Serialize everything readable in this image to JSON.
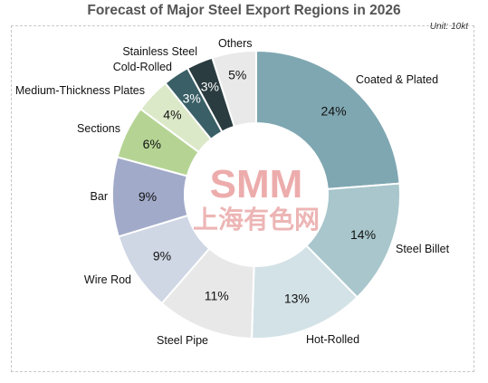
{
  "chart_data": {
    "type": "pie",
    "variant": "donut",
    "title": "Forecast of Major Steel Export Regions in 2026",
    "unit": "Unit: 10kt",
    "categories": [
      "Coated & Plated",
      "Steel Billet",
      "Hot-Rolled",
      "Steel Pipe",
      "Wire Rod",
      "Bar",
      "Sections",
      "Medium-Thickness Plates",
      "Cold-Rolled",
      "Stainless Steel",
      "Others"
    ],
    "values": [
      24,
      14,
      13,
      11,
      9,
      9,
      6,
      4,
      3,
      3,
      5
    ],
    "value_labels": [
      "24%",
      "14%",
      "13%",
      "11%",
      "9%",
      "9%",
      "6%",
      "4%",
      "3%",
      "3%",
      "5%"
    ],
    "colors": [
      "#7fa7b2",
      "#a8c6cc",
      "#d3e2e6",
      "#e8e8e8",
      "#cfd6e4",
      "#a1aac9",
      "#b5d494",
      "#dce9c8",
      "#3a5f66",
      "#2a3c40",
      "#e9e9e9"
    ],
    "label_colors": [
      "#111111",
      "#111111",
      "#111111",
      "#111111",
      "#111111",
      "#111111",
      "#111111",
      "#111111",
      "#ffffff",
      "#ffffff",
      "#111111"
    ],
    "legend": "none"
  },
  "watermark": {
    "latin": "SMM",
    "cjk": "上海有色网"
  }
}
